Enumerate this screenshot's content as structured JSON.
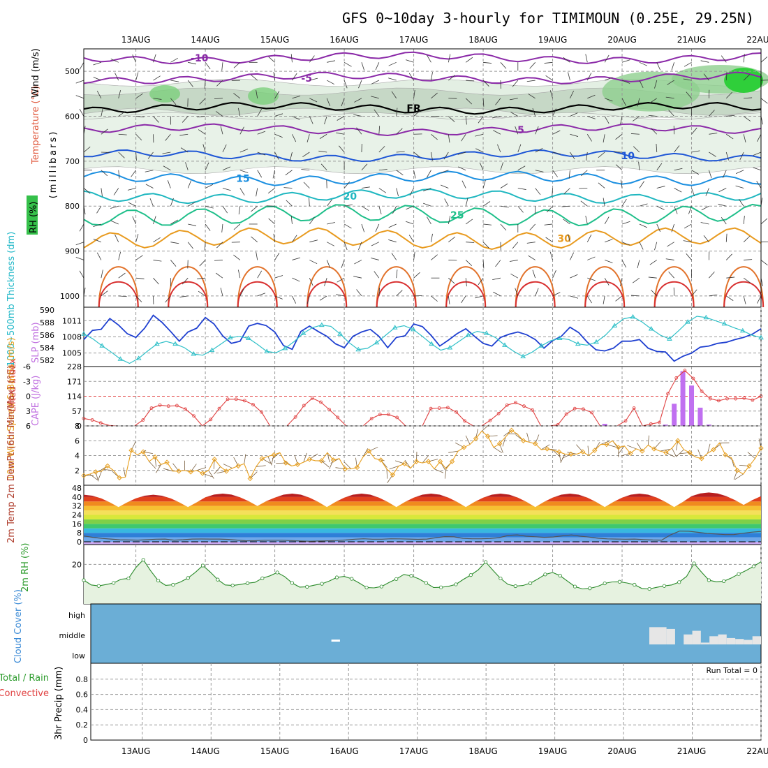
{
  "chart_data": {
    "type": "line",
    "title": "GFS 0~10day 3-hourly for TIMIMOUN (0.25E, 29.25N)",
    "x": {
      "start_hour": 0,
      "end_hour": 234,
      "day_labels": [
        "13AUG",
        "14AUG",
        "15AUG",
        "16AUG",
        "17AUG",
        "18AUG",
        "19AUG",
        "20AUG",
        "21AUG",
        "22AUG"
      ]
    },
    "sounding_panel": {
      "ylabel_wind": "Wind (m/s)",
      "ylabel_temp": "Temperature (°C)",
      "ylabel_rh": "RH (%)",
      "ylabel_units": "(millibars)",
      "yticks": [
        500,
        600,
        700,
        800,
        900,
        1000
      ],
      "ylim": [
        450,
        1025
      ],
      "freezing_label": "FR",
      "isotherms": [
        {
          "value": -10,
          "label": "-10",
          "color": "#8b2aa8",
          "base_p": 470
        },
        {
          "value": -5,
          "label": "-5",
          "color": "#8b2aa8",
          "base_p": 515
        },
        {
          "value": 0,
          "label": "FR",
          "color": "#000000",
          "base_p": 582
        },
        {
          "value": 5,
          "label": "5",
          "color": "#8b2aa8",
          "base_p": 630
        },
        {
          "value": 10,
          "label": "10",
          "color": "#1e56d6",
          "base_p": 688
        },
        {
          "value": 15,
          "label": "15",
          "color": "#1b8fe0",
          "base_p": 738
        },
        {
          "value": 20,
          "label": "20",
          "color": "#1fb7c0",
          "base_p": 778
        },
        {
          "value": 25,
          "label": "25",
          "color": "#1fbf8a",
          "base_p": 820
        },
        {
          "value": 30,
          "label": "30",
          "color": "#e89a1e",
          "base_p": 872
        }
      ]
    },
    "slp_thickness_panel": {
      "ylabel_thickness": "1000~500mb Thickness (dm)",
      "ylabel_slp": "SLP (mb)",
      "thickness_ticks": [
        582,
        584,
        586,
        588,
        590
      ],
      "slp_ticks": [
        1005,
        1008,
        1011
      ],
      "slp_series": [
        1007.5,
        1009.2,
        1009.4,
        1011.4,
        1010.2,
        1008.6,
        1007.9,
        1009.6,
        1012.0,
        1010.7,
        1009.0,
        1007.2,
        1008.9,
        1009.6,
        1011.6,
        1010.4,
        1008.2,
        1006.8,
        1007.2,
        1010.0,
        1010.5,
        1010.1,
        1008.9,
        1006.4,
        1005.7,
        1009.0,
        1010.0,
        1009.0,
        1008.1,
        1006.7,
        1006.0,
        1008.1,
        1008.9,
        1009.4,
        1008.1,
        1006.0,
        1007.9,
        1008.2,
        1010.4,
        1009.9,
        1008.3,
        1006.3,
        1007.4,
        1008.6,
        1009.5,
        1008.1,
        1006.8,
        1006.3,
        1007.9,
        1008.5,
        1008.9,
        1008.4,
        1007.5,
        1005.9,
        1007.3,
        1008.1,
        1009.8,
        1008.8,
        1007.0,
        1005.6,
        1005.4,
        1005.9,
        1007.2,
        1007.2,
        1007.5,
        1005.9,
        1005.3,
        1005.2,
        1003.5,
        1004.4,
        1005.0,
        1006.1,
        1006.3,
        1006.8,
        1007.0,
        1007.5,
        1007.9,
        1008.5,
        1009.5
      ],
      "thickness_series": [
        586.2,
        585.4,
        584.3,
        583.3,
        582.2,
        581.5,
        582.3,
        583.5,
        584.6,
        585.0,
        584.6,
        584.0,
        583.0,
        582.8,
        583.6,
        584.6,
        585.6,
        585.8,
        585.5,
        584.5,
        583.4,
        583.2,
        583.9,
        585.0,
        586.3,
        587.2,
        587.6,
        587.4,
        586.2,
        584.8,
        583.7,
        583.9,
        584.8,
        586.0,
        587.2,
        587.5,
        586.9,
        585.8,
        584.6,
        583.6,
        584.0,
        585.0,
        586.0,
        586.6,
        586.3,
        585.6,
        584.4,
        583.4,
        582.6,
        583.3,
        584.3,
        585.1,
        585.5,
        585.3,
        584.6,
        584.4,
        584.9,
        586.0,
        587.5,
        588.6,
        588.9,
        588.1,
        587.0,
        586.0,
        585.4,
        586.7,
        588.1,
        589.0,
        588.8,
        588.3,
        587.8,
        587.2,
        586.7,
        586.0,
        585.6
      ]
    },
    "cape_li_panel": {
      "ylabel_li": "Lifted Index",
      "ylabel_cape": "CAPE (J/kg)",
      "li_ticks": [
        "-6",
        "-3",
        "0",
        "3",
        "6"
      ],
      "cape_ticks": [
        "228",
        "171",
        "114",
        "57",
        "0"
      ],
      "li_series": [
        4.5,
        4.8,
        5.4,
        5.9,
        6.0,
        6.0,
        6.0,
        4.8,
        2.4,
        1.8,
        2.0,
        1.9,
        2.6,
        4.0,
        6.0,
        4.7,
        2.5,
        0.6,
        0.6,
        0.9,
        1.7,
        3.2,
        6.0,
        6.0,
        6.0,
        4.2,
        1.9,
        0.4,
        1.2,
        2.7,
        4.3,
        6.0,
        6.0,
        6.0,
        4.5,
        3.7,
        3.7,
        4.3,
        6.0,
        6.0,
        6.0,
        2.5,
        2.4,
        2.3,
        3.2,
        5.0,
        6.0,
        6.0,
        4.9,
        3.5,
        1.8,
        1.3,
        2.0,
        2.8,
        6.0,
        6.0,
        5.8,
        3.6,
        2.5,
        2.6,
        3.3,
        6.0,
        6.0,
        6.0,
        5.0,
        2.4,
        6.0,
        5.6,
        5.3,
        -0.5,
        -3.7,
        -5.2,
        -3.6,
        -1.0,
        0.5,
        0.9,
        0.5,
        0.5,
        0.4,
        0.8,
        0.0
      ],
      "cape_bars": [
        {
          "hour": 180,
          "value": 8
        },
        {
          "hour": 201,
          "value": 5
        },
        {
          "hour": 204,
          "value": 85
        },
        {
          "hour": 207,
          "value": 210
        },
        {
          "hour": 210,
          "value": 155
        },
        {
          "hour": 213,
          "value": 70
        },
        {
          "hour": 216,
          "value": 5
        }
      ]
    },
    "wind10m_panel": {
      "ylabel": "10m Wind Speed & Barbs (m/s)",
      "yticks": [
        2,
        4,
        6,
        8
      ],
      "ylim": [
        0,
        8
      ],
      "speed_series": [
        1.3,
        1.5,
        1.8,
        1.9,
        2.6,
        2.0,
        1.0,
        1.1,
        4.7,
        4.1,
        4.5,
        3.2,
        3.8,
        2.8,
        3.1,
        1.9,
        1.9,
        2.0,
        1.8,
        2.0,
        1.6,
        2.0,
        3.5,
        2.5,
        1.9,
        2.3,
        2.6,
        2.9,
        0.9,
        2.5,
        3.6,
        3.9,
        4.1,
        4.4,
        3.0,
        2.6,
        2.8,
        3.1,
        3.5,
        3.3,
        3.3,
        4.4,
        3.4,
        3.6,
        2.2,
        2.2,
        2.4,
        3.8,
        4.6,
        3.6,
        3.4,
        2.2,
        1.4,
        2.6,
        2.9,
        2.3,
        3.2,
        3.0,
        3.2,
        2.2,
        3.2,
        2.2,
        3.2,
        4.6,
        5.1,
        5.5,
        6.3,
        7.3,
        6.6,
        5.1,
        5.6,
        6.5,
        7.4,
        6.9,
        6.0,
        5.8,
        5.6,
        4.8,
        4.9,
        4.7,
        4.5,
        4.2,
        4.2,
        4.2,
        4.5,
        4.0,
        4.7,
        5.5,
        5.5,
        6.0,
        5.1,
        5.3,
        4.3,
        4.9,
        4.6,
        5.4,
        4.9,
        4.6,
        4.4,
        5.0,
        6.0,
        4.8,
        4.4,
        3.8,
        3.6,
        4.3,
        4.8,
        5.7,
        4.1,
        3.7,
        2.0,
        1.5,
        2.6,
        3.6,
        5.0
      ]
    },
    "temp2m_panel": {
      "ylabel": "2m Temp 2m DewPt (6hr Min/Max) (°C)",
      "yticks": [
        0,
        8,
        16,
        24,
        32,
        40,
        48
      ],
      "ylim": [
        0,
        48
      ],
      "temp_max_by_day": [
        42,
        42,
        43,
        43,
        43,
        43,
        43,
        43,
        43,
        44
      ],
      "temp_min_by_day": [
        31,
        31,
        32,
        31,
        31,
        31,
        31,
        31,
        31,
        33
      ],
      "dewpoint_series": [
        5.2,
        4.0,
        3.0,
        2.4,
        1.8,
        1.6,
        1.5,
        1.9,
        2.3,
        2.4,
        1.5,
        1.9,
        2.4,
        2.5,
        2.4,
        2.4,
        2.1,
        1.5,
        0.9,
        1.0,
        1.4,
        1.4,
        1.4,
        1.0,
        0.7,
        0.5,
        0.7,
        0.9,
        1.1,
        1.6,
        2.3,
        2.7,
        2.3,
        2.3,
        2.7,
        2.6,
        2.4,
        2.2,
        2.4,
        3.6,
        4.6,
        4.4,
        3.0,
        2.7,
        2.7,
        2.9,
        3.7,
        5.7,
        6.2,
        5.0,
        4.5,
        4.0,
        4.3,
        5.3,
        6.1,
        5.0,
        4.2,
        3.1,
        2.6,
        2.4,
        2.3,
        2.4,
        2.0,
        1.6,
        1.5,
        6.3,
        9.6,
        9.4,
        8.5,
        7.5,
        7.0,
        6.4,
        6.5,
        7.6,
        8.6,
        9.3
      ]
    },
    "rh2m_panel": {
      "ylabel": "2m RH (%)",
      "yticks": [
        20
      ],
      "ylim": [
        0,
        30
      ],
      "rh_series": [
        12,
        9.6,
        9.1,
        9.8,
        10.6,
        12.5,
        12.9,
        18.4,
        22.3,
        16.7,
        11.8,
        9.4,
        9.7,
        11.1,
        13.1,
        16.0,
        19.4,
        16.1,
        12.3,
        9.6,
        9.3,
        9.8,
        10.5,
        10.9,
        13.0,
        14.2,
        15.9,
        13.8,
        10.6,
        8.5,
        8.7,
        9.5,
        10.2,
        11.6,
        13.4,
        13.9,
        12.7,
        10.6,
        8.3,
        8.1,
        8.8,
        10.8,
        12.6,
        14.9,
        14.2,
        12.7,
        10.6,
        8.3,
        8.4,
        8.9,
        9.9,
        12.4,
        14.6,
        17.2,
        21.2,
        16.9,
        12.9,
        9.9,
        9.0,
        9.3,
        10.5,
        12.6,
        14.9,
        15.9,
        14.3,
        11.5,
        8.8,
        7.6,
        7.9,
        8.8,
        10.4,
        11.1,
        11.2,
        10.6,
        9.7,
        7.8,
        7.6,
        8.4,
        9.1,
        9.6,
        11.0,
        13.9,
        20.5,
        16.1,
        12.0,
        11.2,
        11.5,
        13.1,
        15.1,
        16.9,
        19.0,
        21.3
      ]
    },
    "cloud_panel": {
      "ylabel": "Cloud Cover (%)",
      "levels": [
        "high",
        "middle",
        "low"
      ],
      "background_color": "#6baed6",
      "mid_cloud_blocks": [
        {
          "hour_start": 195,
          "hour_end": 201,
          "value": 95
        },
        {
          "hour_start": 201,
          "hour_end": 204,
          "value": 85
        },
        {
          "hour_start": 207,
          "hour_end": 210,
          "value": 55
        },
        {
          "hour_start": 210,
          "hour_end": 213,
          "value": 75
        },
        {
          "hour_start": 213,
          "hour_end": 216,
          "value": 10
        },
        {
          "hour_start": 216,
          "hour_end": 219,
          "value": 45
        },
        {
          "hour_start": 219,
          "hour_end": 222,
          "value": 55
        },
        {
          "hour_start": 222,
          "hour_end": 225,
          "value": 35
        },
        {
          "hour_start": 225,
          "hour_end": 228,
          "value": 30
        },
        {
          "hour_start": 228,
          "hour_end": 231,
          "value": 25
        },
        {
          "hour_start": 231,
          "hour_end": 234,
          "value": 45
        }
      ],
      "low_cloud_blocks": [
        {
          "hour_start": 84,
          "hour_end": 87,
          "value": 10
        }
      ]
    },
    "precip_panel": {
      "ylabel_total": "Total / Rain",
      "ylabel_conv": "Convective",
      "ylabel": "3hr Precip (mm)",
      "yticks": [
        "0",
        "0.2",
        "0.4",
        "0.6",
        "0.8"
      ],
      "ylim": [
        0,
        1
      ],
      "run_total_label": "Run Total = 0",
      "values": []
    }
  }
}
